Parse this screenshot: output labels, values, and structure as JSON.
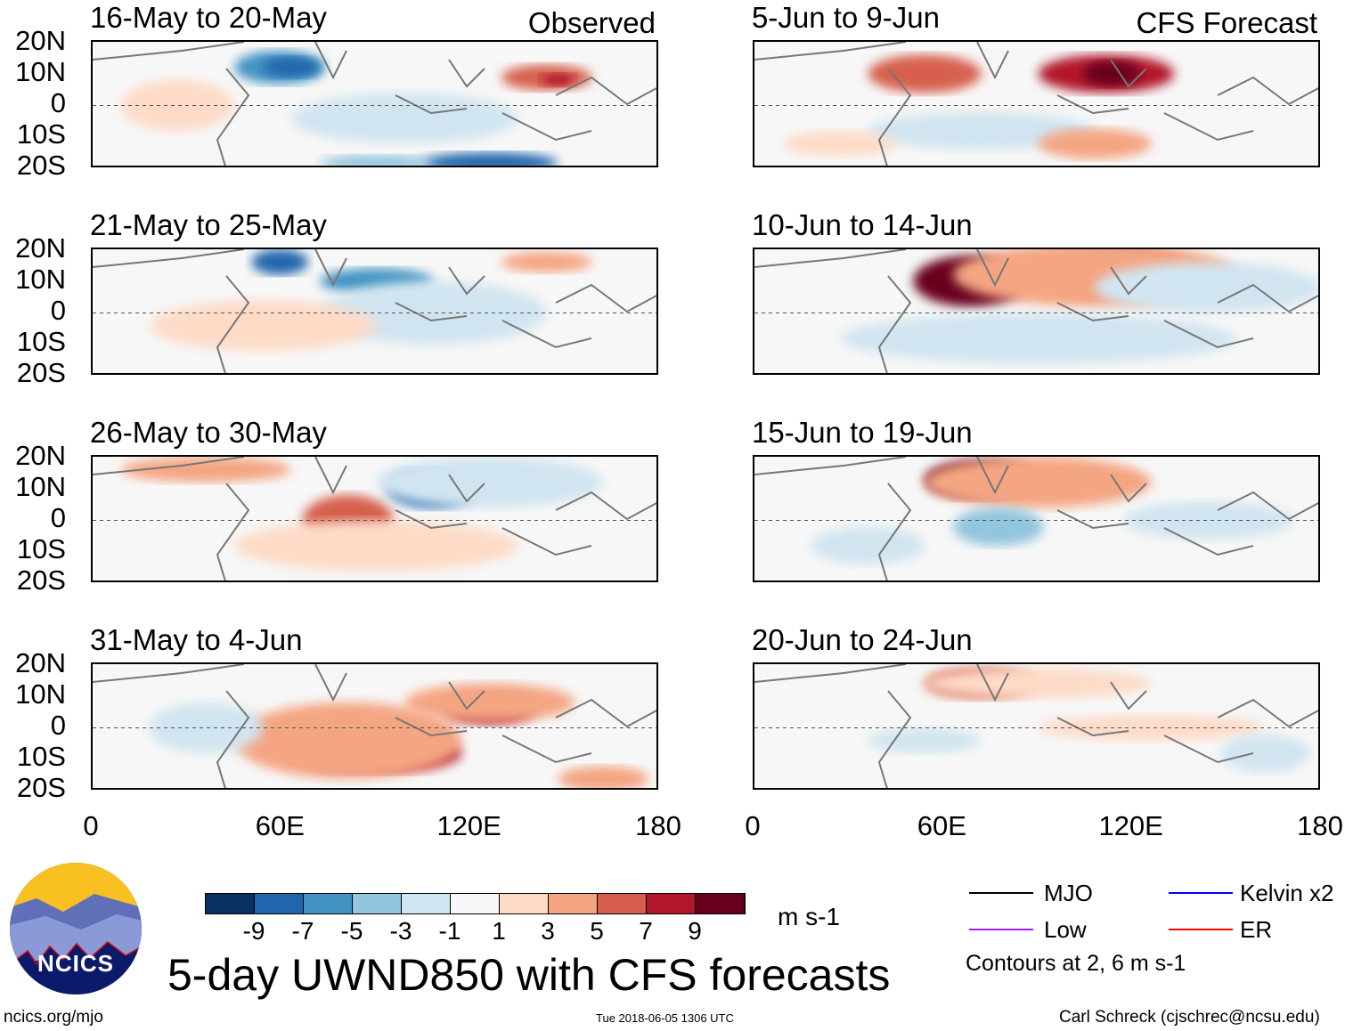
{
  "headers": {
    "observed": "Observed",
    "forecast": "CFS Forecast"
  },
  "panels": [
    {
      "title": "16-May to 20-May",
      "type": "observed"
    },
    {
      "title": "21-May to 25-May",
      "type": "observed"
    },
    {
      "title": "26-May to 30-May",
      "type": "observed"
    },
    {
      "title": "31-May to 4-Jun",
      "type": "observed"
    },
    {
      "title": "5-Jun to 9-Jun",
      "type": "forecast"
    },
    {
      "title": "10-Jun to 14-Jun",
      "type": "forecast"
    },
    {
      "title": "15-Jun to 19-Jun",
      "type": "forecast"
    },
    {
      "title": "20-Jun to 24-Jun",
      "type": "forecast"
    }
  ],
  "lat_labels": [
    "20N",
    "10N",
    "0",
    "10S",
    "20S"
  ],
  "lon_labels": [
    "0",
    "60E",
    "120E",
    "180"
  ],
  "colorbar": {
    "colors": [
      "#0a3060",
      "#2166ac",
      "#4393c3",
      "#92c5de",
      "#d1e5f0",
      "#f7f7f7",
      "#fddbc7",
      "#f4a582",
      "#d6604d",
      "#b2182b",
      "#67001f"
    ],
    "labels": [
      "-9",
      "-7",
      "-5",
      "-3",
      "-1",
      "1",
      "3",
      "5",
      "7",
      "9"
    ],
    "units": "m s-1"
  },
  "legend": {
    "items": [
      {
        "label": "MJO",
        "color": "#000000"
      },
      {
        "label": "Kelvin x2",
        "color": "#0000ff"
      },
      {
        "label": "Low",
        "color": "#a020f0"
      },
      {
        "label": "ER",
        "color": "#ff0000"
      }
    ],
    "note": "Contours at 2, 6 m s-1"
  },
  "title": "5-day UWND850 with CFS forecasts",
  "footer": {
    "left": "ncics.org/mjo",
    "center": "Tue 2018-06-05 1306 UTC",
    "right": "Carl Schreck (cjschrec@ncsu.edu)"
  },
  "logo": {
    "text": "NCICS"
  }
}
